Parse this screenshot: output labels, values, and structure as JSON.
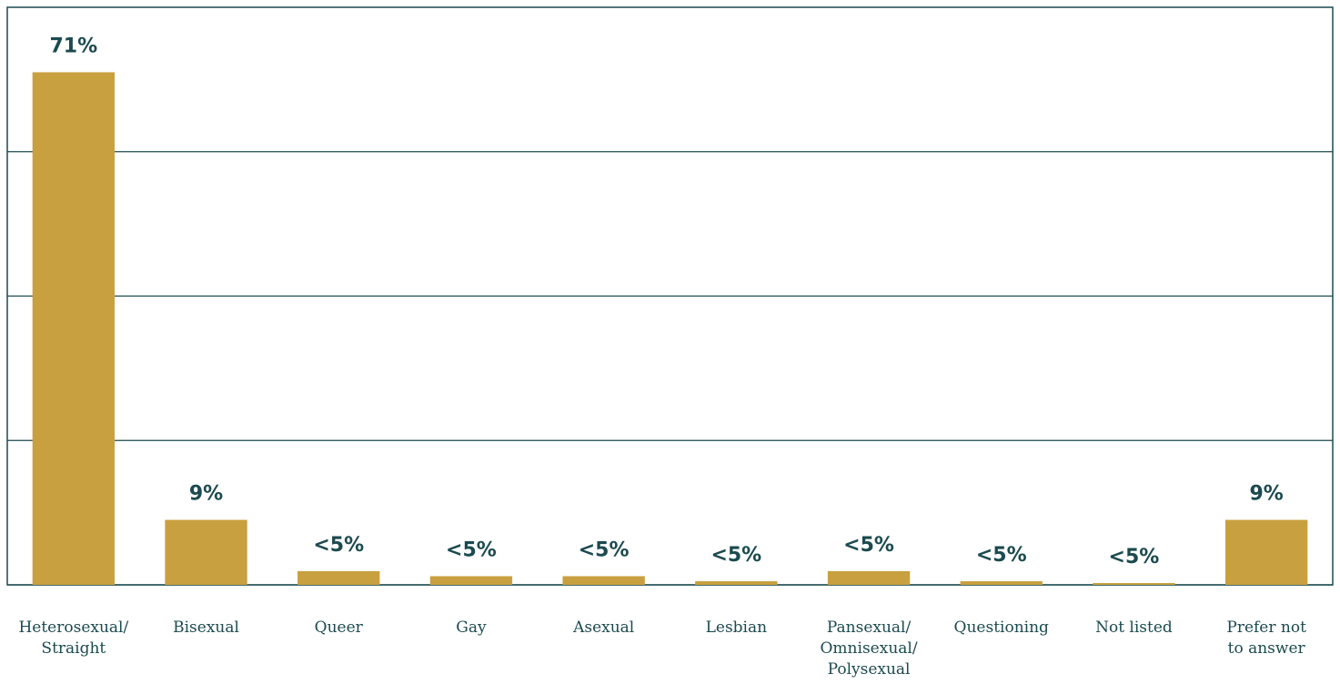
{
  "chart_data": {
    "type": "bar",
    "categories": [
      [
        "Heterosexual/",
        "Straight"
      ],
      [
        "Bisexual"
      ],
      [
        "Queer"
      ],
      [
        "Gay"
      ],
      [
        "Asexual"
      ],
      [
        "Lesbian"
      ],
      [
        "Pansexual/",
        "Omnisexual/",
        "Polysexual"
      ],
      [
        "Questioning"
      ],
      [
        "Not listed"
      ],
      [
        "Prefer not",
        "to answer"
      ]
    ],
    "values": [
      71,
      9,
      1.9,
      1.2,
      1.2,
      0.5,
      1.9,
      0.5,
      0.25,
      9
    ],
    "value_labels": [
      "71%",
      "9%",
      "<5%",
      "<5%",
      "<5%",
      "<5%",
      "<5%",
      "<5%",
      "<5%",
      "9%"
    ],
    "color": "#c9a040",
    "ylim": [
      0,
      80
    ],
    "yticks": [
      0,
      20,
      40,
      60
    ],
    "grid": true
  }
}
